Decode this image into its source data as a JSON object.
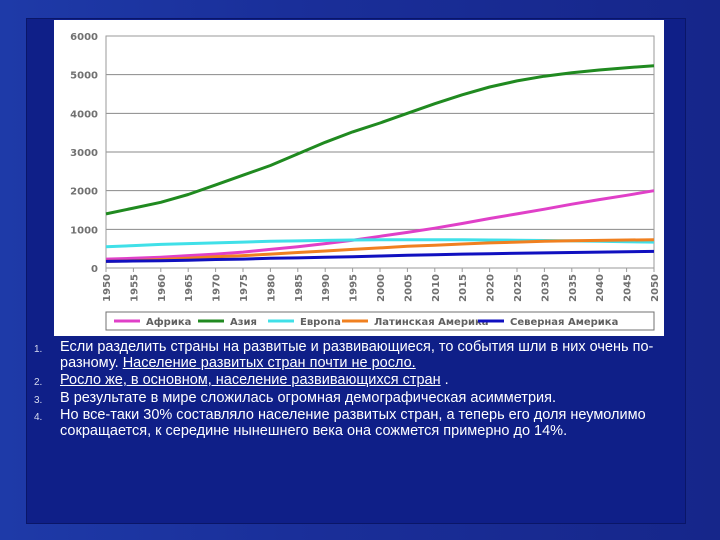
{
  "chart_data": {
    "type": "line",
    "title": "",
    "xlabel": "",
    "ylabel": "",
    "ylim": [
      0,
      6000
    ],
    "yticks": [
      0,
      1000,
      2000,
      3000,
      4000,
      5000,
      6000
    ],
    "yticks_labels": [
      "0",
      "1000",
      "2000",
      "3000",
      "4000",
      "5000",
      "6000"
    ],
    "x": [
      1950,
      1955,
      1960,
      1965,
      1970,
      1975,
      1980,
      1985,
      1990,
      1995,
      2000,
      2005,
      2010,
      2015,
      2020,
      2025,
      2030,
      2035,
      2040,
      2045,
      2050
    ],
    "x_labels": [
      "1950",
      "1955",
      "1960",
      "1965",
      "1970",
      "1975",
      "1980",
      "1985",
      "1990",
      "1995",
      "2000",
      "2005",
      "2010",
      "2015",
      "2020",
      "2025",
      "2030",
      "2035",
      "2040",
      "2045",
      "2050"
    ],
    "grid": true,
    "legend_position": "bottom",
    "series": [
      {
        "name": "Африка",
        "color": "#e040c8",
        "values": [
          230,
          250,
          280,
          320,
          360,
          410,
          480,
          550,
          630,
          720,
          820,
          920,
          1030,
          1150,
          1280,
          1400,
          1520,
          1650,
          1770,
          1880,
          2000
        ]
      },
      {
        "name": "Азия",
        "color": "#208a20",
        "values": [
          1400,
          1550,
          1700,
          1900,
          2150,
          2400,
          2650,
          2950,
          3250,
          3520,
          3750,
          4000,
          4250,
          4480,
          4680,
          4840,
          4960,
          5050,
          5120,
          5180,
          5230
        ]
      },
      {
        "name": "Европа",
        "color": "#40e0e8",
        "values": [
          550,
          580,
          610,
          630,
          650,
          670,
          690,
          700,
          715,
          725,
          730,
          730,
          730,
          730,
          725,
          720,
          710,
          700,
          690,
          680,
          670
        ]
      },
      {
        "name": "Латинская Америка",
        "color": "#f08020",
        "values": [
          170,
          190,
          220,
          250,
          290,
          320,
          360,
          400,
          440,
          480,
          520,
          560,
          590,
          620,
          650,
          670,
          690,
          705,
          715,
          725,
          730
        ]
      },
      {
        "name": "Северная Америка",
        "color": "#1010c0",
        "values": [
          170,
          180,
          190,
          200,
          220,
          230,
          250,
          260,
          280,
          290,
          310,
          330,
          345,
          360,
          370,
          380,
          390,
          400,
          410,
          420,
          430
        ]
      }
    ]
  },
  "text": {
    "items": [
      {
        "num": "1.",
        "before": "Если разделить страны на развитые и развивающиеся, то события шли в них очень по-разному. ",
        "underlined": "Население развитых стран почти не росло.",
        "after": ""
      },
      {
        "num": "2.",
        "before": "",
        "underlined": "Росло же, в основном, население развивающихся стран",
        "after": " ."
      },
      {
        "num": "3.",
        "before": "В результате в мире сложилась огромная демографическая асимметрия.",
        "underlined": "",
        "after": ""
      },
      {
        "num": "4.",
        "before": "Но все-таки 30% составляло население развитых стран, а теперь его доля неумолимо сокращается, к середине нынешнего века она сожмется примерно до 14%.",
        "underlined": "",
        "after": ""
      }
    ]
  }
}
